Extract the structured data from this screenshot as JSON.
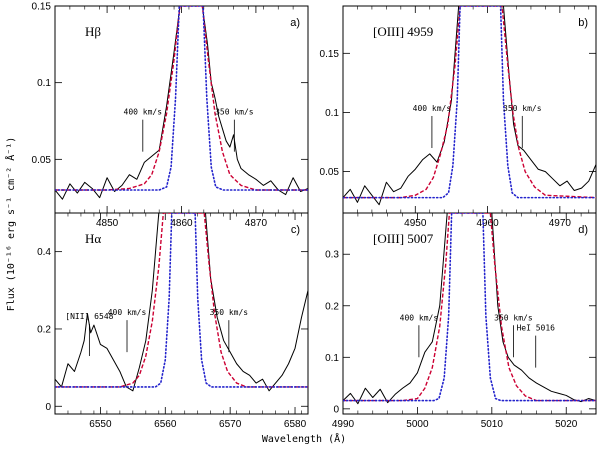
{
  "figure": {
    "ylabel": "Flux (10⁻¹⁶ erg s⁻¹ cm⁻² Å⁻¹)",
    "xlabel": "Wavelength (Å)"
  },
  "chart_data": [
    {
      "type": "line",
      "panel_label": "a)",
      "line_label": "Hβ",
      "xlim": [
        4843,
        4877
      ],
      "ylim": [
        0.015,
        0.15
      ],
      "xticks": [
        4850,
        4860,
        4870
      ],
      "yticks": [
        0.05,
        0.1,
        0.15
      ],
      "ytick_labels": [
        "0.05",
        "0.1",
        "0.15"
      ],
      "continuum": 0.03,
      "center": 4861.3,
      "annotations": [
        {
          "text": "400 km/s",
          "x": 4854.8,
          "y_mark": 0.055
        },
        {
          "text": "350 km/s",
          "x": 4867.1,
          "y_mark": 0.055
        }
      ],
      "series": [
        {
          "kind": "observed",
          "color": "#000000",
          "style": "solid",
          "x": [
            4843,
            4844,
            4845,
            4846,
            4847,
            4848,
            4849,
            4850,
            4851,
            4852,
            4853,
            4854,
            4855,
            4856,
            4857,
            4858,
            4859,
            4859.8,
            4862.8,
            4863.5,
            4864,
            4864.5,
            4865,
            4865.5,
            4866,
            4866.5,
            4867,
            4867.5,
            4868,
            4869,
            4870,
            4871,
            4872,
            4873,
            4874,
            4875,
            4876,
            4877
          ],
          "y": [
            0.03,
            0.024,
            0.034,
            0.028,
            0.035,
            0.031,
            0.025,
            0.038,
            0.029,
            0.033,
            0.04,
            0.037,
            0.048,
            0.052,
            0.056,
            0.085,
            0.12,
            0.15,
            0.15,
            0.125,
            0.1,
            0.09,
            0.078,
            0.07,
            0.062,
            0.058,
            0.066,
            0.05,
            0.044,
            0.04,
            0.037,
            0.033,
            0.036,
            0.03,
            0.027,
            0.038,
            0.029,
            0.031
          ]
        },
        {
          "kind": "model-broad",
          "color": "#cc0033",
          "style": "dashed",
          "x": [
            4843,
            4850,
            4853,
            4855,
            4856,
            4857,
            4858,
            4859,
            4859.8,
            4862.8,
            4863.6,
            4864.5,
            4865.5,
            4866.5,
            4868,
            4870,
            4877
          ],
          "y": [
            0.03,
            0.03,
            0.031,
            0.034,
            0.04,
            0.055,
            0.08,
            0.115,
            0.15,
            0.15,
            0.115,
            0.08,
            0.055,
            0.04,
            0.033,
            0.03,
            0.03
          ]
        },
        {
          "kind": "model-narrow",
          "color": "#2222cc",
          "style": "dotted",
          "x": [
            4843,
            4857,
            4858,
            4858.6,
            4859.2,
            4859.7,
            4862.9,
            4863.4,
            4864,
            4864.6,
            4865.6,
            4877
          ],
          "y": [
            0.03,
            0.03,
            0.032,
            0.045,
            0.09,
            0.15,
            0.15,
            0.09,
            0.045,
            0.032,
            0.03,
            0.03
          ]
        }
      ]
    },
    {
      "type": "line",
      "panel_label": "b)",
      "line_label": "[OIII] 4959",
      "xlim": [
        4940,
        4975
      ],
      "ylim": [
        0.015,
        0.19
      ],
      "xticks": [
        4950,
        4960,
        4970
      ],
      "yticks": [
        0.05,
        0.1,
        0.15
      ],
      "ytick_labels": [
        "0.05",
        "0.1",
        "0.15"
      ],
      "continuum": 0.028,
      "center": 4958.9,
      "annotations": [
        {
          "text": "400 km/s",
          "x": 4952.3,
          "y_mark": 0.07
        },
        {
          "text": "350 km/s",
          "x": 4964.8,
          "y_mark": 0.07
        }
      ],
      "series": [
        {
          "kind": "observed",
          "color": "#000000",
          "style": "solid",
          "x": [
            4940,
            4941,
            4942,
            4943,
            4944,
            4945,
            4946,
            4947,
            4948,
            4949,
            4950,
            4951,
            4952,
            4953,
            4954,
            4955,
            4956,
            4962.2,
            4963,
            4963.6,
            4964.2,
            4965,
            4966,
            4967,
            4968,
            4969,
            4970,
            4971,
            4972,
            4973,
            4974,
            4975
          ],
          "y": [
            0.028,
            0.035,
            0.024,
            0.038,
            0.03,
            0.022,
            0.041,
            0.033,
            0.036,
            0.046,
            0.052,
            0.06,
            0.065,
            0.058,
            0.075,
            0.11,
            0.19,
            0.19,
            0.13,
            0.09,
            0.072,
            0.068,
            0.06,
            0.052,
            0.05,
            0.044,
            0.038,
            0.042,
            0.034,
            0.036,
            0.042,
            0.056
          ]
        },
        {
          "kind": "model-broad",
          "color": "#cc0033",
          "style": "dashed",
          "x": [
            4940,
            4948,
            4950,
            4951.5,
            4952.5,
            4953.5,
            4954.5,
            4955.5,
            4956.2,
            4962,
            4962.8,
            4963.5,
            4964.3,
            4965.2,
            4966.5,
            4968,
            4975
          ],
          "y": [
            0.028,
            0.028,
            0.03,
            0.035,
            0.045,
            0.065,
            0.09,
            0.14,
            0.19,
            0.19,
            0.14,
            0.1,
            0.07,
            0.05,
            0.037,
            0.03,
            0.028
          ]
        },
        {
          "kind": "model-narrow",
          "color": "#2222cc",
          "style": "dotted",
          "x": [
            4940,
            4953.8,
            4954.6,
            4955.2,
            4955.8,
            4956.2,
            4961.8,
            4962.2,
            4962.8,
            4963.4,
            4964.2,
            4975
          ],
          "y": [
            0.028,
            0.028,
            0.032,
            0.055,
            0.11,
            0.19,
            0.19,
            0.11,
            0.055,
            0.032,
            0.028,
            0.028
          ]
        }
      ]
    },
    {
      "type": "line",
      "panel_label": "c)",
      "line_label": "Hα",
      "xlim": [
        6543,
        6582
      ],
      "ylim": [
        -0.02,
        0.5
      ],
      "xticks": [
        6550,
        6560,
        6570,
        6580
      ],
      "yticks": [
        0,
        0.2,
        0.4
      ],
      "ytick_labels": [
        "0",
        "0.2",
        "0.4"
      ],
      "continuum": 0.05,
      "center": 6562.8,
      "annotations": [
        {
          "text": "[NII] 6548",
          "x": 6548.3,
          "y_mark": 0.13
        },
        {
          "text": "400 km/s",
          "x": 6554.1,
          "y_mark": 0.14
        },
        {
          "text": "350 km/s",
          "x": 6569.8,
          "y_mark": 0.14
        }
      ],
      "series": [
        {
          "kind": "observed",
          "color": "#000000",
          "style": "solid",
          "x": [
            6543,
            6544,
            6545,
            6546,
            6547,
            6547.5,
            6548,
            6548.5,
            6549,
            6550,
            6551,
            6552,
            6553,
            6554,
            6555,
            6556,
            6557,
            6558,
            6559,
            6566.2,
            6567,
            6568,
            6569,
            6570,
            6571,
            6572,
            6573,
            6574,
            6575,
            6576,
            6577,
            6578,
            6579,
            6580,
            6581,
            6582
          ],
          "y": [
            0.07,
            0.05,
            0.11,
            0.09,
            0.14,
            0.17,
            0.24,
            0.19,
            0.21,
            0.16,
            0.15,
            0.12,
            0.09,
            0.05,
            0.04,
            0.1,
            0.17,
            0.3,
            0.5,
            0.5,
            0.33,
            0.23,
            0.17,
            0.14,
            0.11,
            0.09,
            0.08,
            0.06,
            0.07,
            0.04,
            0.06,
            0.08,
            0.11,
            0.15,
            0.23,
            0.3
          ]
        },
        {
          "kind": "model-broad",
          "color": "#cc0033",
          "style": "dashed",
          "x": [
            6543,
            6553,
            6555,
            6556,
            6557,
            6558,
            6559,
            6559.7,
            6566,
            6566.8,
            6567.6,
            6568.6,
            6569.6,
            6571,
            6572.5,
            6582
          ],
          "y": [
            0.05,
            0.05,
            0.06,
            0.08,
            0.13,
            0.22,
            0.36,
            0.5,
            0.5,
            0.36,
            0.24,
            0.14,
            0.09,
            0.06,
            0.05,
            0.05
          ]
        },
        {
          "kind": "model-narrow",
          "color": "#2222cc",
          "style": "dotted",
          "x": [
            6543,
            6558.5,
            6559.3,
            6560,
            6560.6,
            6561,
            6564.6,
            6565,
            6565.6,
            6566.3,
            6567.1,
            6582
          ],
          "y": [
            0.05,
            0.05,
            0.06,
            0.12,
            0.28,
            0.5,
            0.5,
            0.28,
            0.12,
            0.06,
            0.05,
            0.05
          ]
        }
      ]
    },
    {
      "type": "line",
      "panel_label": "d)",
      "line_label": "[OIII] 5007",
      "xlim": [
        4990,
        5024
      ],
      "ylim": [
        -0.01,
        0.38
      ],
      "xticks": [
        4990,
        5000,
        5010,
        5020
      ],
      "yticks": [
        0,
        0.1,
        0.2,
        0.3
      ],
      "ytick_labels": [
        "0",
        "0.1",
        "0.2",
        "0.3"
      ],
      "continuum": 0.016,
      "center": 5006.8,
      "annotations": [
        {
          "text": "400 km/s",
          "x": 5000.2,
          "y_mark": 0.1
        },
        {
          "text": "350 km/s",
          "x": 5012.9,
          "y_mark": 0.1
        },
        {
          "text": "HeI 5016",
          "x": 5015.9,
          "y_mark": 0.08
        }
      ],
      "series": [
        {
          "kind": "observed",
          "color": "#000000",
          "style": "solid",
          "x": [
            4990,
            4991,
            4992,
            4993,
            4994,
            4995,
            4996,
            4997,
            4998,
            4999,
            5000,
            5000.5,
            5001,
            5001.5,
            5002,
            5003,
            5004,
            5010,
            5010.8,
            5011.5,
            5012.2,
            5013,
            5014,
            5015,
            5016,
            5017,
            5018,
            5019,
            5020,
            5021,
            5022,
            5023,
            5024
          ],
          "y": [
            0.016,
            0.03,
            0.01,
            0.04,
            0.022,
            0.038,
            0.012,
            0.028,
            0.04,
            0.05,
            0.07,
            0.09,
            0.11,
            0.12,
            0.13,
            0.2,
            0.38,
            0.38,
            0.2,
            0.13,
            0.1,
            0.085,
            0.075,
            0.06,
            0.05,
            0.042,
            0.034,
            0.03,
            0.026,
            0.018,
            0.014,
            0.02,
            0.016
          ]
        },
        {
          "kind": "model-broad",
          "color": "#cc0033",
          "style": "dashed",
          "x": [
            4990,
            4998,
            5000,
            5001,
            5002,
            5003,
            5003.8,
            5004.3,
            5009.8,
            5010.4,
            5011.3,
            5012.3,
            5013.3,
            5014.5,
            5016,
            5024
          ],
          "y": [
            0.016,
            0.016,
            0.02,
            0.04,
            0.08,
            0.16,
            0.28,
            0.38,
            0.38,
            0.28,
            0.16,
            0.08,
            0.045,
            0.025,
            0.016,
            0.016
          ]
        },
        {
          "kind": "model-narrow",
          "color": "#2222cc",
          "style": "dotted",
          "x": [
            4990,
            5002.2,
            5002.9,
            5003.6,
            5004.2,
            5004.6,
            5008.8,
            5009.2,
            5009.8,
            5010.5,
            5011.2,
            5024
          ],
          "y": [
            0.016,
            0.016,
            0.02,
            0.06,
            0.18,
            0.38,
            0.38,
            0.18,
            0.06,
            0.02,
            0.016,
            0.016
          ]
        }
      ]
    }
  ]
}
